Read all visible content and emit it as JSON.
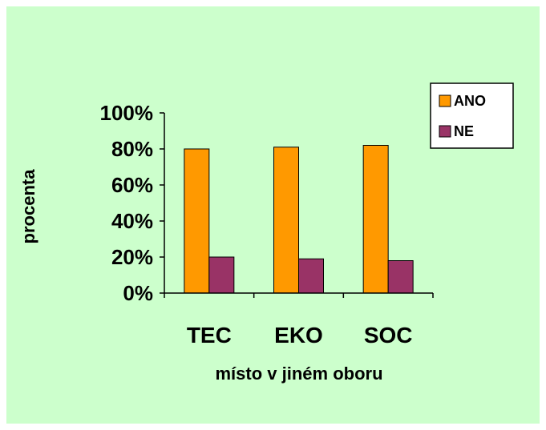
{
  "chart_data": {
    "type": "bar",
    "categories": [
      "TEC",
      "EKO",
      "SOC"
    ],
    "series": [
      {
        "name": "ANO",
        "values": [
          80,
          81,
          82
        ],
        "color": "#ff9900"
      },
      {
        "name": "NE",
        "values": [
          20,
          19,
          18
        ],
        "color": "#993366"
      }
    ],
    "title": "",
    "xlabel": "místo v jiném oboru",
    "ylabel": "procenta",
    "ylim": [
      0,
      100
    ],
    "yticks": [
      0,
      20,
      40,
      60,
      80,
      100
    ],
    "ytick_format": "%",
    "grid": false,
    "legend": "top-right",
    "background": "#ccffcc"
  }
}
